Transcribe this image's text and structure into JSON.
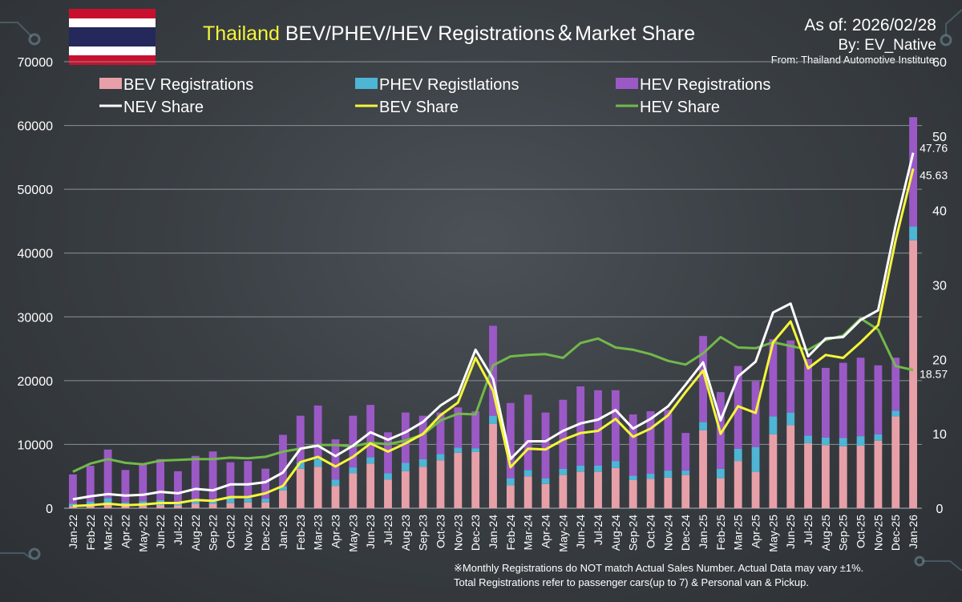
{
  "header": {
    "title_highlight": "Thailand",
    "title_rest": " BEV/PHEV/HEV Registrations＆Market Share",
    "as_of": "As of: 2026/02/28",
    "by": "By: EV_Native",
    "source": "From: Thailand Automotive Institute",
    "flag_name": "Thailand flag"
  },
  "footnote": {
    "line1": "※Monthly Registrations do NOT match Actual Sales Number. Actual Data may vary ±1%.",
    "line2": "Total Registrations refer to passenger cars(up to 7) & Personal van & Pickup."
  },
  "colors": {
    "bev": "#e8a0a8",
    "phev": "#4eb5d4",
    "hev": "#9b59c6",
    "nev_share": "#ffffff",
    "bev_share": "#f5f53a",
    "hev_share": "#72b84a",
    "title_highlight": "#f5f53a"
  },
  "chart_data": {
    "type": "bar",
    "stacked": true,
    "title": "Thailand BEV/PHEV/HEV Registrations＆Market Share",
    "categories": [
      "Jan-22",
      "Feb-22",
      "Mar-22",
      "Apr-22",
      "May-22",
      "Jun-22",
      "Jul-22",
      "Aug-22",
      "Sep-22",
      "Oct-22",
      "Nov-22",
      "Dec-22",
      "Jan-23",
      "Feb-23",
      "Mar-23",
      "Apr-23",
      "May-23",
      "Jun-23",
      "Jul-23",
      "Aug-23",
      "Sep-23",
      "Oct-23",
      "Nov-23",
      "Dec-23",
      "Jan-24",
      "Feb-24",
      "Mar-24",
      "Apr-24",
      "May-24",
      "Jun-24",
      "Jul-24",
      "Aug-24",
      "Sep-24",
      "Oct-24",
      "Nov-24",
      "Dec-24",
      "Jan-25",
      "Feb-25",
      "Mar-25",
      "Apr-25",
      "May-25",
      "Jun-25",
      "Jul-25",
      "Aug-25",
      "Sep-25",
      "Oct-25",
      "Nov-25",
      "Dec-25",
      "Jan-26"
    ],
    "y_left": {
      "range": [
        0,
        70000
      ],
      "ticks": [
        "0",
        "10000",
        "20000",
        "30000",
        "40000",
        "50000",
        "60000",
        "70000"
      ]
    },
    "y_right": {
      "range": [
        0,
        60
      ],
      "ticks": [
        "0",
        "10",
        "20",
        "30",
        "40",
        "50",
        "60"
      ]
    },
    "grid": true,
    "legend_position": "top-left",
    "series": [
      {
        "name": "BEV Registrations",
        "kind": "bar",
        "axis": "left",
        "values": [
          300,
          350,
          500,
          350,
          400,
          500,
          450,
          700,
          700,
          800,
          900,
          900,
          2800,
          6200,
          6500,
          3500,
          5500,
          7000,
          4500,
          5800,
          6500,
          7500,
          8700,
          8800,
          13200,
          3600,
          5000,
          3800,
          5200,
          5700,
          5700,
          6300,
          4400,
          4600,
          4800,
          5200,
          12200,
          4700,
          7400,
          5700,
          11600,
          13000,
          10200,
          9900,
          9700,
          9800,
          10600,
          14400,
          42000
        ]
      },
      {
        "name": "PHEV Registlations",
        "kind": "bar",
        "axis": "left",
        "values": [
          400,
          700,
          1100,
          550,
          700,
          800,
          550,
          500,
          500,
          900,
          600,
          600,
          600,
          1000,
          1200,
          1000,
          900,
          1000,
          1000,
          1300,
          1200,
          1000,
          800,
          600,
          1300,
          1100,
          1000,
          900,
          1000,
          1000,
          1000,
          1100,
          700,
          800,
          1100,
          700,
          1300,
          1500,
          1900,
          3900,
          2800,
          2000,
          1200,
          1200,
          1300,
          1500,
          1000,
          900,
          2200
        ]
      },
      {
        "name": "HEV Registrations",
        "kind": "bar",
        "axis": "left",
        "values": [
          4600,
          5600,
          7600,
          5100,
          5900,
          6400,
          4800,
          7000,
          7700,
          5500,
          5900,
          4700,
          8100,
          7300,
          8400,
          6300,
          8100,
          8200,
          6400,
          7900,
          6800,
          6500,
          6300,
          5800,
          14100,
          11800,
          11800,
          10300,
          10800,
          12400,
          11800,
          11100,
          9600,
          9800,
          9500,
          5900,
          13500,
          12000,
          13000,
          10300,
          12100,
          11300,
          12000,
          10900,
          11800,
          12300,
          10800,
          8300,
          17100
        ]
      },
      {
        "name": "NEV Share",
        "kind": "line",
        "axis": "right",
        "values": [
          1.2,
          1.6,
          1.9,
          1.7,
          1.8,
          2.2,
          2.0,
          2.6,
          2.4,
          3.2,
          3.2,
          3.5,
          4.8,
          8.0,
          8.4,
          7.0,
          8.4,
          10.2,
          9.2,
          10.2,
          11.6,
          13.8,
          15.3,
          21.3,
          17.4,
          6.6,
          9.0,
          9.0,
          10.4,
          11.4,
          11.9,
          13.2,
          10.7,
          12.0,
          13.7,
          16.6,
          19.6,
          11.8,
          17.7,
          19.7,
          26.3,
          27.5,
          20.4,
          22.8,
          23.0,
          25.3,
          26.6,
          38.0,
          47.76
        ]
      },
      {
        "name": "BEV Share",
        "kind": "line",
        "axis": "right",
        "values": [
          0.3,
          0.4,
          0.6,
          0.4,
          0.5,
          0.7,
          0.7,
          1.1,
          1.0,
          1.5,
          1.5,
          2.0,
          3.0,
          6.2,
          6.9,
          5.6,
          6.9,
          8.7,
          7.6,
          8.7,
          10.0,
          12.5,
          14.2,
          20.2,
          15.8,
          5.5,
          8.0,
          7.9,
          9.2,
          10.1,
          10.4,
          12.0,
          9.6,
          10.7,
          12.5,
          15.6,
          18.5,
          10.0,
          13.7,
          12.8,
          22.3,
          25.1,
          18.8,
          20.6,
          20.2,
          22.3,
          24.6,
          36.0,
          45.63
        ]
      },
      {
        "name": "HEV Share",
        "kind": "line",
        "axis": "right",
        "values": [
          4.9,
          6.0,
          6.6,
          6.1,
          5.9,
          6.4,
          6.5,
          6.6,
          6.6,
          6.8,
          6.7,
          6.9,
          7.6,
          8.0,
          8.5,
          8.5,
          8.3,
          8.8,
          8.6,
          9.1,
          9.9,
          11.8,
          12.7,
          12.6,
          19.2,
          20.4,
          20.6,
          20.7,
          20.2,
          22.2,
          22.8,
          21.6,
          21.3,
          20.7,
          19.8,
          19.3,
          20.8,
          23.0,
          21.6,
          21.5,
          22.3,
          21.8,
          21.3,
          22.6,
          23.2,
          25.5,
          24.0,
          19.1,
          18.57
        ]
      }
    ],
    "annotations": [
      {
        "series": "NEV Share",
        "category": "Jan-26",
        "text": "47.76"
      },
      {
        "series": "BEV Share",
        "category": "Jan-26",
        "text": "45.63"
      },
      {
        "series": "HEV Share",
        "category": "Jan-26",
        "text": "18.57"
      }
    ]
  }
}
